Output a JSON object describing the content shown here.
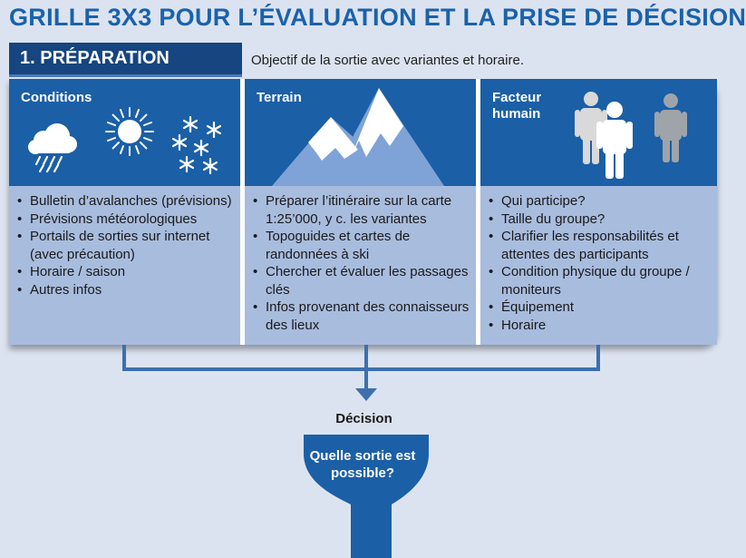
{
  "title": "GRILLE 3X3 POUR L’ÉVALUATION ET LA PRISE DE DÉCISION",
  "step": {
    "title": "1. PRÉPARATION",
    "objective": "Objectif de la sortie avec variantes et horaire."
  },
  "columns": [
    {
      "title_lines": [
        "Conditions"
      ],
      "icons": [
        "rain-cloud-icon",
        "sun-icon",
        "snowflakes-icon"
      ],
      "items": [
        "Bulletin d’avalanches (prévisions)",
        "Prévisions météorologiques",
        "Portails de sorties sur internet (avec précaution)",
        "Horaire / saison",
        "Autres infos"
      ]
    },
    {
      "title_lines": [
        "Terrain"
      ],
      "icons": [
        "mountain-icon"
      ],
      "items": [
        "Préparer l’itinéraire sur la carte 1:25’000, y c. les variantes",
        "Topoguides et cartes de randonnées à ski",
        "Chercher et évaluer les passages clés",
        "Infos provenant des connais­seurs des lieux"
      ]
    },
    {
      "title_lines": [
        "Facteur",
        "humain"
      ],
      "icons": [
        "people-icon"
      ],
      "items": [
        "Qui participe?",
        "Taille du groupe?",
        "Clarifier les responsabilités et attentes des participants",
        "Condition physique du groupe / moniteurs",
        "Équipement",
        "Horaire"
      ]
    }
  ],
  "decision": {
    "label": "Décision",
    "question": "Quelle sortie est possible?"
  },
  "colors": {
    "title_blue": "#1a62ab",
    "header_navy": "#16457f",
    "column_blue": "#1b5fa6",
    "list_background": "#a8bcde",
    "connector": "#3d6fae",
    "page_background": "#dce3f0"
  }
}
